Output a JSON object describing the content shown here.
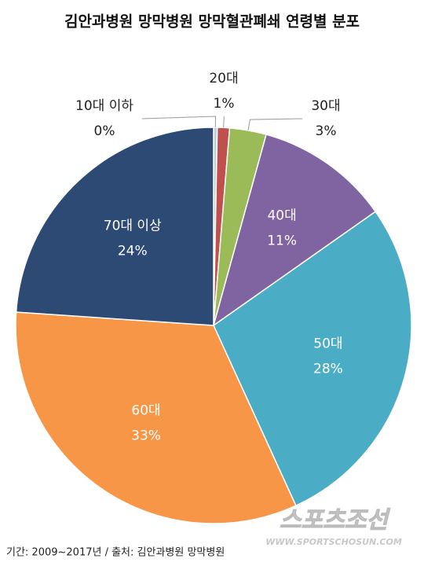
{
  "chart_data": {
    "type": "pie",
    "title": "김안과병원 망막병원 망막혈관폐쇄 연령별 분포",
    "categories": [
      "10대 이하",
      "20대",
      "30대",
      "40대",
      "50대",
      "60대",
      "70대 이상"
    ],
    "values": [
      0.3,
      1,
      3,
      11,
      28,
      33,
      24
    ],
    "value_labels": [
      "0%",
      "1%",
      "3%",
      "11%",
      "28%",
      "33%",
      "24%"
    ],
    "colors": [
      "#b8cce4",
      "#c0504d",
      "#9bbb59",
      "#8064a2",
      "#4bacc6",
      "#f79646",
      "#2c4a74"
    ],
    "footnote": "기간: 2009~2017년 / 출처: 김안과병원 망막병원",
    "watermark": [
      "스포츠조선",
      "WWW.SPORTSCHOSUN.COM"
    ]
  }
}
